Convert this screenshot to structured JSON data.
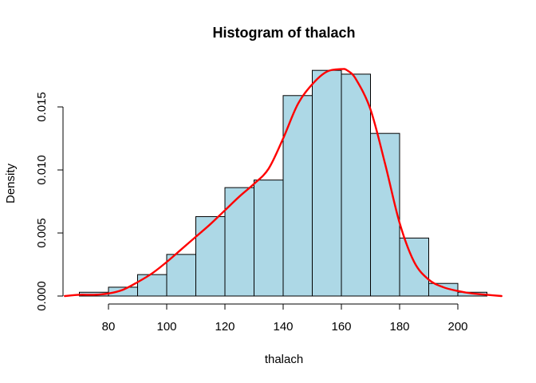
{
  "chart_data": {
    "type": "bar",
    "title": "Histogram of thalach",
    "xlabel": "thalach",
    "ylabel": "Density",
    "bin_edges": [
      70,
      80,
      90,
      100,
      110,
      120,
      130,
      140,
      150,
      160,
      170,
      180,
      190,
      200,
      210
    ],
    "values": [
      0.0003,
      0.0007,
      0.0017,
      0.0033,
      0.0063,
      0.0086,
      0.0092,
      0.0159,
      0.0179,
      0.0176,
      0.0129,
      0.0046,
      0.001,
      0.0003
    ],
    "xlim": [
      65,
      215
    ],
    "ylim": [
      0,
      0.018
    ],
    "x_ticks": [
      80,
      100,
      120,
      140,
      160,
      180,
      200
    ],
    "x_tick_labels": [
      "80",
      "100",
      "120",
      "140",
      "160",
      "180",
      "200"
    ],
    "y_ticks": [
      0,
      0.005,
      0.01,
      0.015
    ],
    "y_tick_labels": [
      "0.000",
      "0.005",
      "0.010",
      "0.015"
    ],
    "density_curve": {
      "x": [
        65,
        70,
        75,
        80,
        85,
        90,
        95,
        100,
        105,
        110,
        115,
        120,
        125,
        130,
        135,
        140,
        145,
        150,
        155,
        160,
        162,
        165,
        170,
        175,
        180,
        185,
        190,
        195,
        200,
        205,
        210,
        215
      ],
      "y": [
        0.0,
        0.0001,
        0.0001,
        0.0002,
        0.0005,
        0.0011,
        0.0018,
        0.0027,
        0.0037,
        0.0047,
        0.0057,
        0.0068,
        0.0079,
        0.0089,
        0.0101,
        0.0125,
        0.0152,
        0.0168,
        0.0178,
        0.018,
        0.0179,
        0.0172,
        0.0148,
        0.0105,
        0.0058,
        0.0027,
        0.0013,
        0.0007,
        0.0004,
        0.0002,
        0.0001,
        0.0
      ]
    },
    "bar_color": "#add8e6",
    "curve_color": "#ff0000",
    "grid": false,
    "legend": "none"
  }
}
